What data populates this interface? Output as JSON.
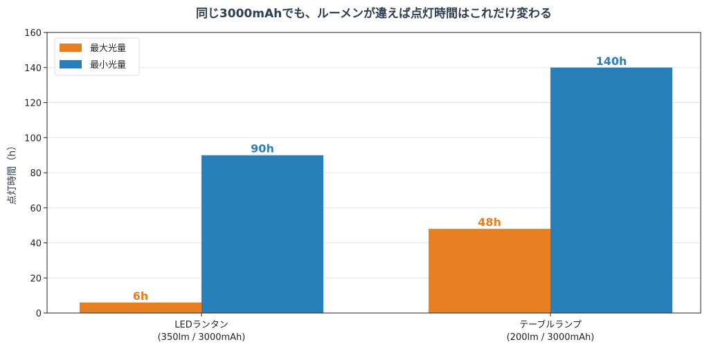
{
  "chart_data": {
    "type": "bar",
    "title": "同じ3000mAhでも、ルーメンが違えば点灯時間はこれだけ変わる",
    "xlabel": "",
    "ylabel": "点灯時間（h）",
    "ylim": [
      0,
      160
    ],
    "yticks": [
      0,
      20,
      40,
      60,
      80,
      100,
      120,
      140,
      160
    ],
    "grid": "y",
    "legend_position": "top-left",
    "categories": [
      [
        "LEDランタン",
        "(350lm / 3000mAh)"
      ],
      [
        "テーブルランプ",
        "(200lm / 3000mAh)"
      ]
    ],
    "series": [
      {
        "name": "最大光量",
        "values": [
          6,
          48
        ],
        "labels": [
          "6h",
          "48h"
        ],
        "color": "#E67E22"
      },
      {
        "name": "最小光量",
        "values": [
          90,
          140
        ],
        "labels": [
          "90h",
          "140h"
        ],
        "color": "#2980B9"
      }
    ]
  }
}
